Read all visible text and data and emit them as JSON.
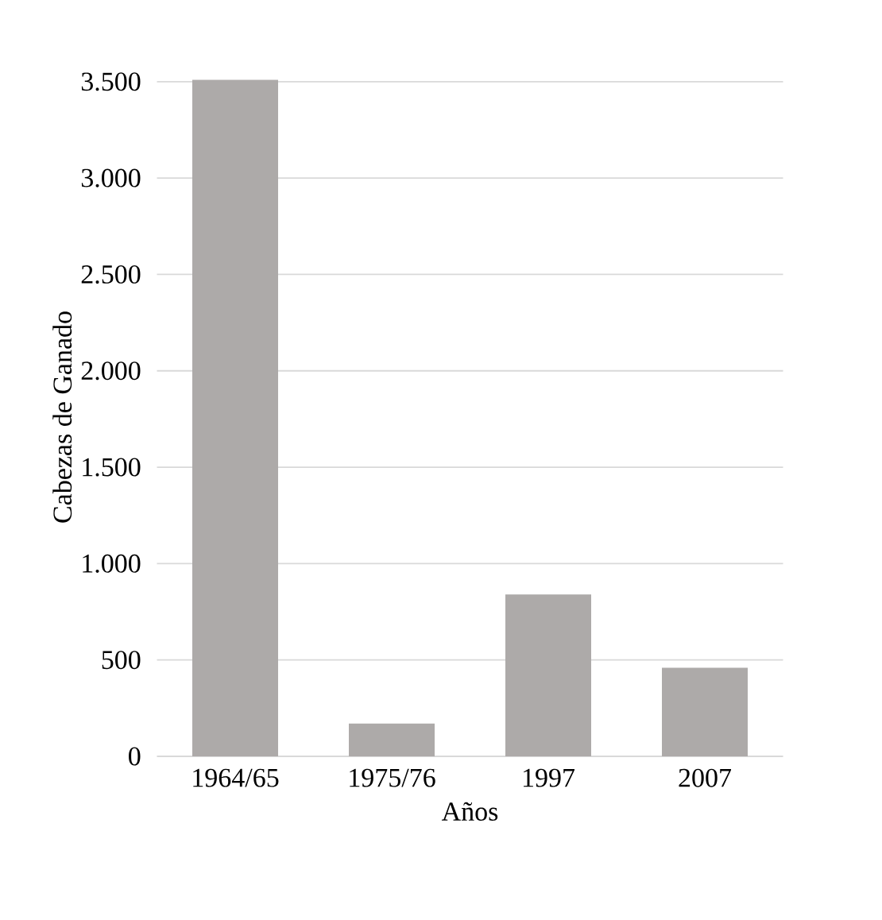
{
  "chart_data": {
    "type": "bar",
    "xlabel": "Años",
    "ylabel": "Cabezas de Ganado",
    "categories": [
      "1964/65",
      "1975/76",
      "1997",
      "2007"
    ],
    "values": [
      3510,
      170,
      840,
      460
    ],
    "color": "#adaaa9",
    "ylim": [
      0,
      3520
    ],
    "yticks": [
      0,
      {
        "value": 500,
        "label": "500"
      },
      {
        "value": 1000,
        "label": "1.000"
      },
      {
        "value": 1500,
        "label": "1.500"
      },
      {
        "value": 2000,
        "label": "2.000"
      },
      {
        "value": 2500,
        "label": "2.500"
      },
      {
        "value": 3000,
        "label": "3.000"
      },
      {
        "value": 3500,
        "label": "3.500"
      }
    ],
    "grid": "y"
  }
}
